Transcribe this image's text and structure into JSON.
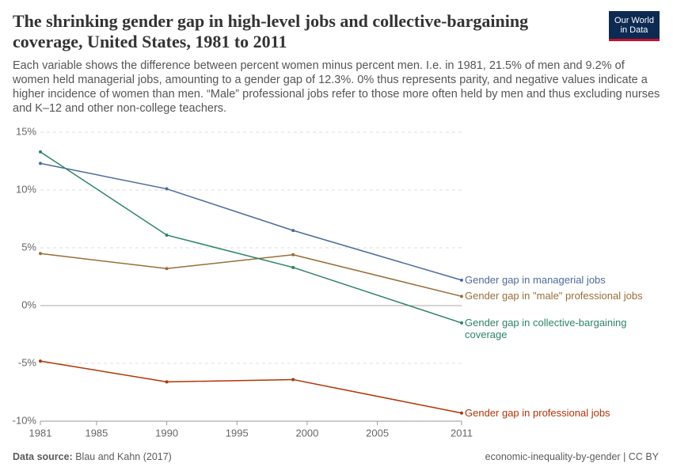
{
  "chart_data": {
    "type": "line",
    "title": "The shrinking gender gap in high-level jobs and collective-bargaining coverage, United States, 1981 to 2011",
    "subtitle": "Each variable shows the difference between percent women minus percent men. I.e. in 1981, 21.5% of men and 9.2% of women held managerial jobs, amounting to a gender gap of 12.3%. 0% thus represents parity, and negative values indicate a higher incidence of women than men. “Male” professional jobs refer to those more often held by men and thus excluding nurses and K–12 and other non-college teachers.",
    "logo": [
      "Our World",
      "in Data"
    ],
    "source_label": "Data source:",
    "source": "Blau and Kahn (2017)",
    "footer_right": "economic-inequality-by-gender | CC BY",
    "x": [
      1981,
      1990,
      1999,
      2011
    ],
    "xlim": [
      1981,
      2011
    ],
    "xticks": [
      1981,
      1985,
      1990,
      1995,
      2000,
      2005,
      2011
    ],
    "ylim": [
      -10,
      15
    ],
    "yticks": [
      {
        "value": -10,
        "label": "-10%"
      },
      {
        "value": -5,
        "label": "-5%"
      },
      {
        "value": 0,
        "label": "0%"
      },
      {
        "value": 5,
        "label": "5%"
      },
      {
        "value": 10,
        "label": "10%"
      },
      {
        "value": 15,
        "label": "15%"
      }
    ],
    "grid": true,
    "series": [
      {
        "name": "Gender gap in managerial jobs",
        "color": "#4c6a9c",
        "values": [
          12.3,
          10.1,
          6.5,
          2.2
        ]
      },
      {
        "name": "Gender gap in \"male\" professional jobs",
        "color": "#996d39",
        "values": [
          4.5,
          3.2,
          4.4,
          0.8
        ]
      },
      {
        "name": "Gender gap in collective-bargaining coverage",
        "color": "#2c8465",
        "values": [
          13.3,
          6.1,
          3.3,
          -1.5
        ]
      },
      {
        "name": "Gender gap in professional jobs",
        "color": "#b13507",
        "values": [
          -4.8,
          -6.6,
          -6.4,
          -9.3
        ]
      }
    ]
  }
}
